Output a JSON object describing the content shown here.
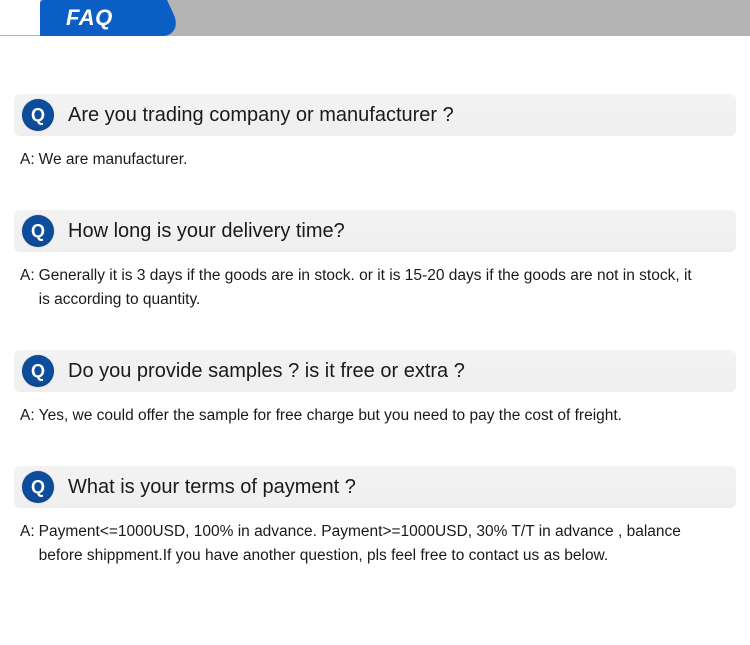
{
  "header": {
    "title": "FAQ",
    "tab_bg_color": "#0a5ec4",
    "tab_text_color": "#ffffff",
    "bar_bg_color": "#b4b4b4"
  },
  "badge": {
    "q_letter": "Q",
    "bg_color": "#0e4d9b",
    "text_color": "#ffffff"
  },
  "answer_prefix": "A:",
  "question_row_bg": "#f1f1f1",
  "items": [
    {
      "question": "Are you trading company or manufacturer ?",
      "answer": "We are manufacturer."
    },
    {
      "question": "How long is your delivery time?",
      "answer": "Generally it is 3 days if the goods are in stock. or it is 15-20 days if the goods are not in stock, it is according to quantity."
    },
    {
      "question": "Do you provide samples ? is it free or extra ?",
      "answer": "Yes, we could offer the sample for free charge but you need to pay the cost of freight."
    },
    {
      "question": "What is your terms of payment ?",
      "answer": "Payment<=1000USD, 100% in advance. Payment>=1000USD, 30% T/T in advance , balance before shippment.If you have another question, pls feel free to contact us as below."
    }
  ]
}
